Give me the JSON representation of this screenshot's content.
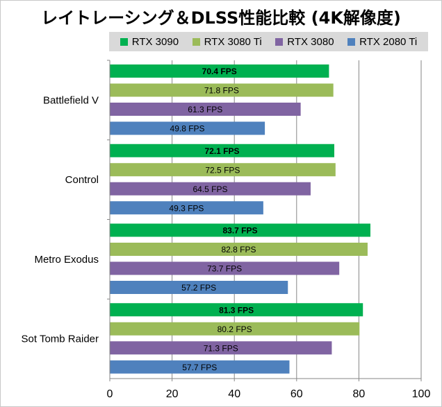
{
  "chart_data": {
    "type": "bar",
    "orientation": "horizontal",
    "title": "レイトレーシング＆DLSS性能比較 (4K解像度)",
    "categories": [
      "Battlefield V",
      "Control",
      "Metro Exodus",
      "Sot Tomb Raider"
    ],
    "series": [
      {
        "name": "RTX 3090",
        "color": "#00b050",
        "values": [
          70.4,
          72.1,
          83.7,
          81.3
        ],
        "labels": [
          "70.4 FPS",
          "72.1 FPS",
          "83.7 FPS",
          "81.3 FPS"
        ]
      },
      {
        "name": "RTX 3080 Ti",
        "color": "#9bbb59",
        "values": [
          71.8,
          72.5,
          82.8,
          80.2
        ],
        "labels": [
          "71.8 FPS",
          "72.5 FPS",
          "82.8 FPS",
          "80.2 FPS"
        ]
      },
      {
        "name": "RTX 3080",
        "color": "#8064a2",
        "values": [
          61.3,
          64.5,
          73.7,
          71.3
        ],
        "labels": [
          "61.3 FPS",
          "64.5 FPS",
          "73.7 FPS",
          "71.3 FPS"
        ]
      },
      {
        "name": "RTX 2080 Ti",
        "color": "#4f81bd",
        "values": [
          49.8,
          49.3,
          57.2,
          57.7
        ],
        "labels": [
          "49.8 FPS",
          "49.3 FPS",
          "57.2 FPS",
          "57.7 FPS"
        ]
      }
    ],
    "xlim": [
      0,
      100
    ],
    "xticks": [
      "0",
      "20",
      "40",
      "60",
      "80",
      "100"
    ],
    "xtick_values": [
      0,
      20,
      40,
      60,
      80,
      100
    ],
    "grid": true,
    "legend_position": "top"
  }
}
